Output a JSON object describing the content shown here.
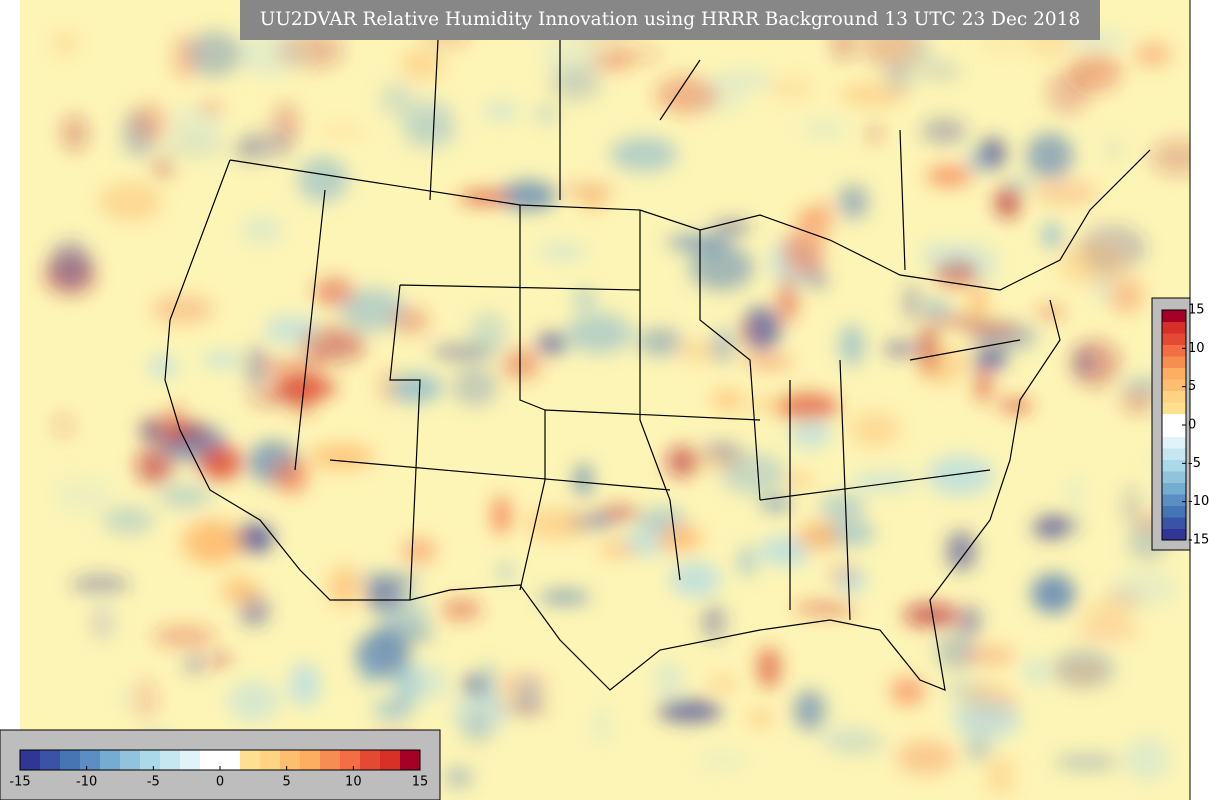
{
  "title": "UU2DVAR Relative Humidity Innovation using HRRR Background 13 UTC 23 Dec 2018",
  "colorbars": [
    {
      "orientation": "horizontal",
      "lim": [
        -15,
        15
      ],
      "ticks": [
        -15,
        -10,
        -5,
        0,
        5,
        10,
        15
      ]
    },
    {
      "orientation": "vertical",
      "lim": [
        -15,
        15
      ],
      "ticks": [
        15,
        10,
        5,
        0,
        -5,
        -10,
        -15
      ]
    }
  ],
  "colors": [
    "#313695",
    "#3a53a4",
    "#4575b4",
    "#5b8fc3",
    "#74add1",
    "#91c3dd",
    "#abd9e9",
    "#c6e6f0",
    "#e0f3f8",
    "#ffffff",
    "#ffffff",
    "#fee090",
    "#fed382",
    "#fdbe70",
    "#fdae61",
    "#f88d52",
    "#f46d43",
    "#e34933",
    "#d73027",
    "#a50026"
  ]
}
